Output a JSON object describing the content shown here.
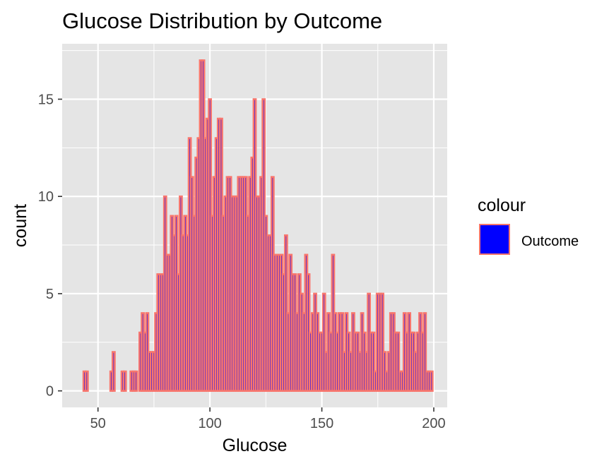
{
  "chart_data": {
    "type": "bar",
    "title": "Glucose Distribution by Outcome",
    "xlabel": "Glucose",
    "ylabel": "count",
    "xlim": [
      34,
      206
    ],
    "ylim": [
      -0.85,
      17.85
    ],
    "x_ticks": [
      50,
      100,
      150,
      200
    ],
    "y_ticks": [
      0,
      5,
      10,
      15
    ],
    "grid": true,
    "legend_position": "right",
    "legend": {
      "title": "colour",
      "entries": [
        {
          "label": "Outcome",
          "fill": "#0000ff",
          "border": "#f8766d"
        }
      ]
    },
    "colors": {
      "bar_fill": "#0000ff",
      "bar_border": "#f8766d",
      "panel": "#e5e5e5",
      "grid": "#ffffff"
    },
    "x": [
      44,
      45,
      46,
      47,
      48,
      49,
      50,
      51,
      52,
      53,
      54,
      55,
      56,
      57,
      58,
      59,
      60,
      61,
      62,
      63,
      64,
      65,
      66,
      67,
      68,
      69,
      70,
      71,
      72,
      73,
      74,
      75,
      76,
      77,
      78,
      79,
      80,
      81,
      82,
      83,
      84,
      85,
      86,
      87,
      88,
      89,
      90,
      91,
      92,
      93,
      94,
      95,
      96,
      97,
      98,
      99,
      100,
      101,
      102,
      103,
      104,
      105,
      106,
      107,
      108,
      109,
      110,
      111,
      112,
      113,
      114,
      115,
      116,
      117,
      118,
      119,
      120,
      121,
      122,
      123,
      124,
      125,
      126,
      127,
      128,
      129,
      130,
      131,
      132,
      133,
      134,
      135,
      136,
      137,
      138,
      139,
      140,
      141,
      142,
      143,
      144,
      145,
      146,
      147,
      148,
      149,
      150,
      151,
      152,
      153,
      154,
      155,
      156,
      157,
      158,
      159,
      160,
      161,
      162,
      163,
      164,
      165,
      166,
      167,
      168,
      169,
      170,
      171,
      172,
      173,
      174,
      175,
      176,
      177,
      178,
      179,
      180,
      181,
      182,
      183,
      184,
      185,
      186,
      187,
      188,
      189,
      190,
      191,
      192,
      193,
      194,
      195,
      196,
      197,
      198,
      199
    ],
    "values": [
      1,
      1,
      0,
      0,
      0,
      0,
      0,
      0,
      0,
      0,
      0,
      0,
      1,
      2,
      0,
      0,
      0,
      1,
      1,
      0,
      0,
      1,
      1,
      1,
      0,
      3,
      4,
      3,
      4,
      2,
      2,
      2,
      4,
      6,
      6,
      6,
      10,
      7,
      7,
      9,
      8,
      9,
      6,
      10,
      8,
      9,
      8,
      13,
      11,
      9,
      12,
      13,
      17,
      17,
      13,
      14,
      15,
      9,
      11,
      13,
      14,
      14,
      9,
      10,
      11,
      11,
      10,
      10,
      10,
      11,
      11,
      11,
      11,
      9,
      11,
      12,
      15,
      10,
      10,
      11,
      15,
      9,
      8,
      8,
      11,
      7,
      7,
      7,
      7,
      6,
      8,
      4,
      7,
      6,
      6,
      4,
      6,
      5,
      4,
      7,
      6,
      3,
      4,
      5,
      4,
      3,
      3,
      5,
      2,
      4,
      3,
      7,
      4,
      3,
      4,
      4,
      2,
      4,
      3,
      2,
      4,
      3,
      3,
      2,
      4,
      3,
      2,
      5,
      3,
      3,
      1,
      5,
      5,
      5,
      2,
      1,
      2,
      4,
      4,
      3,
      3,
      1,
      1,
      4,
      3,
      4,
      3,
      3,
      2,
      3,
      4,
      3,
      4,
      1,
      1,
      1
    ]
  }
}
